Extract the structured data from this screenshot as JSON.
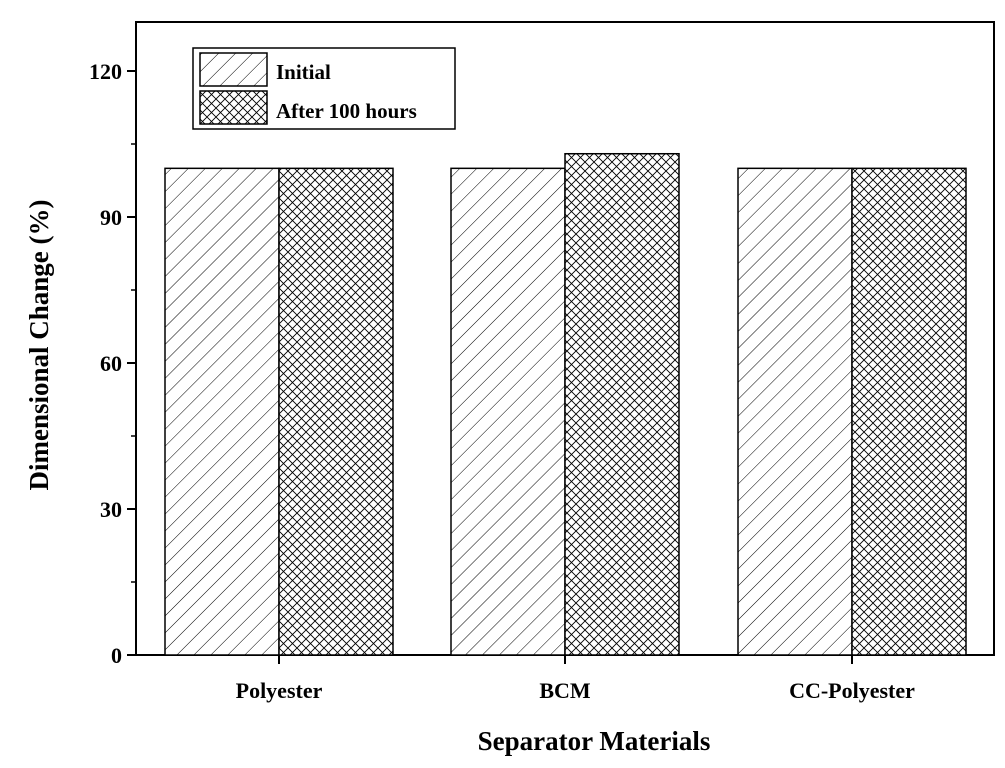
{
  "chart_data": {
    "type": "bar",
    "categories": [
      "Polyester",
      "BCM",
      "CC-Polyester"
    ],
    "series": [
      {
        "name": "Initial",
        "values": [
          100,
          100,
          100
        ],
        "pattern": "diagonal-hatch"
      },
      {
        "name": "After 100 hours",
        "values": [
          100,
          103,
          100
        ],
        "pattern": "cross-hatch"
      }
    ],
    "xlabel": "Separator Materials",
    "ylabel": "Dimensional Change (%)",
    "ylim": [
      0,
      130
    ],
    "yticks": [
      0,
      30,
      60,
      90,
      120
    ],
    "grid": false,
    "legend_position": "top-left",
    "colors": {
      "bar_fill": "#ffffff",
      "hatch": "#000000",
      "axis": "#000000"
    }
  }
}
